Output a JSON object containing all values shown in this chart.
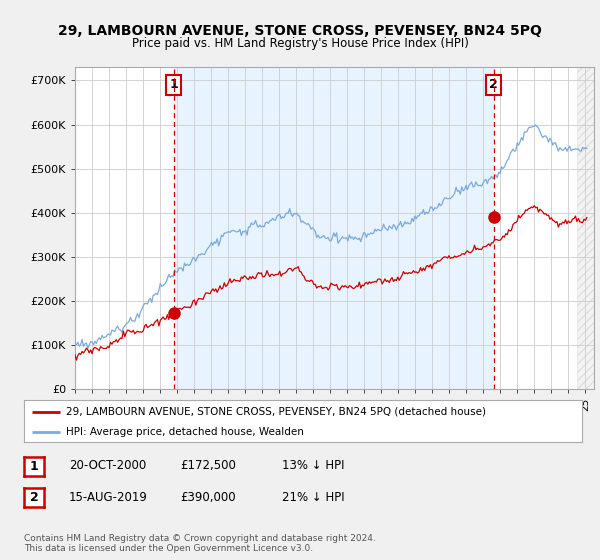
{
  "title": "29, LAMBOURN AVENUE, STONE CROSS, PEVENSEY, BN24 5PQ",
  "subtitle": "Price paid vs. HM Land Registry's House Price Index (HPI)",
  "ylabel_ticks": [
    "£0",
    "£100K",
    "£200K",
    "£300K",
    "£400K",
    "£500K",
    "£600K",
    "£700K"
  ],
  "ytick_values": [
    0,
    100000,
    200000,
    300000,
    400000,
    500000,
    600000,
    700000
  ],
  "ylim": [
    0,
    730000
  ],
  "xlim_start": 1995.0,
  "xlim_end": 2025.5,
  "legend_line1": "29, LAMBOURN AVENUE, STONE CROSS, PEVENSEY, BN24 5PQ (detached house)",
  "legend_line2": "HPI: Average price, detached house, Wealden",
  "ann1_date": "20-OCT-2000",
  "ann1_price": "£172,500",
  "ann1_hpi": "13% ↓ HPI",
  "ann2_date": "15-AUG-2019",
  "ann2_price": "£390,000",
  "ann2_hpi": "21% ↓ HPI",
  "footnote1": "Contains HM Land Registry data © Crown copyright and database right 2024.",
  "footnote2": "This data is licensed under the Open Government Licence v3.0.",
  "price_paid_color": "#cc0000",
  "hpi_color": "#7aaadd",
  "hpi_fill_color": "#ddeeff",
  "marker_color": "#cc0000",
  "ann_box_color": "#cc0000",
  "background_color": "#f0f0f0",
  "plot_bg_color": "#ffffff",
  "grid_color": "#cccccc",
  "ann1_x": 2000.8,
  "ann2_x": 2019.6,
  "ann1_y": 172500,
  "ann2_y": 390000,
  "vline1_x": 2000.8,
  "vline2_x": 2019.6,
  "hatch_start": 2024.5
}
